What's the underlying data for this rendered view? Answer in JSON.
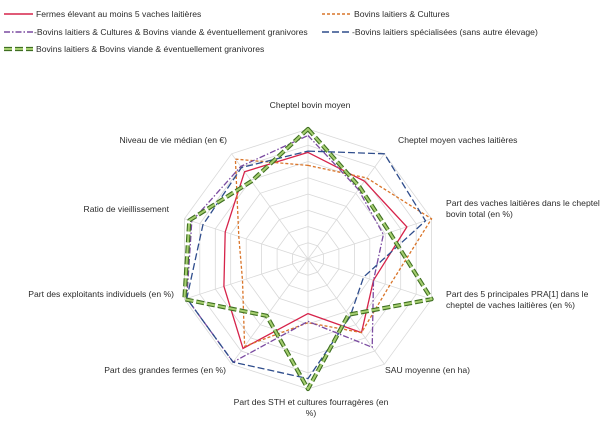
{
  "chart_data": {
    "type": "radar",
    "title": "",
    "grid": true,
    "legend_position": "top",
    "axes": [
      "Cheptel bovin moyen",
      "Cheptel moyen vaches laitières",
      "Part des vaches laitières dans le cheptel bovin total (en %)",
      "Part des 5 principales PRA[1] dans le cheptel de vaches laitières (en %)",
      "SAU moyenne (en ha)",
      "Part des STH et cultures fourragères (en %)",
      "Part des grandes fermes (en %)",
      "Part des exploitants individuels (en %)",
      "Ratio de vieillissement",
      "Niveau de vie médian (en €)"
    ],
    "axis_labels": [
      {
        "lines": [
          "Cheptel bovin moyen"
        ]
      },
      {
        "lines": [
          "Cheptel moyen vaches laitières"
        ]
      },
      {
        "lines": [
          "Part des vaches laitières dans le cheptel",
          "bovin total (en %)"
        ]
      },
      {
        "lines": [
          "Part des 5 principales PRA[1] dans le",
          "cheptel de vaches laitières (en %)"
        ]
      },
      {
        "lines": [
          "SAU moyenne (en ha)"
        ]
      },
      {
        "lines": [
          "Part des STH et cultures fourragères (en",
          "%)"
        ]
      },
      {
        "lines": [
          "Part des grandes fermes (en %)"
        ]
      },
      {
        "lines": [
          "Part des exploitants individuels (en %)"
        ]
      },
      {
        "lines": [
          "Ratio de vieillissement"
        ]
      },
      {
        "lines": [
          "Niveau de vie médian (en €)"
        ]
      }
    ],
    "r_range": [
      0,
      1
    ],
    "grid_levels": 8,
    "series": [
      {
        "name": "Fermes élevant au moins 5 vaches laitières",
        "color": "#d6234a",
        "style": "solid",
        "values": [
          0.82,
          0.74,
          0.8,
          0.53,
          0.7,
          0.42,
          0.85,
          0.68,
          0.67,
          0.83
        ]
      },
      {
        "name": "Bovins laitiers & Cultures",
        "color": "#d9752a",
        "style": "dashed",
        "values": [
          0.72,
          0.77,
          1.0,
          0.66,
          0.7,
          0.49,
          0.83,
          0.53,
          0.56,
          0.95
        ]
      },
      {
        "name": "-Bovins laitiers & Cultures & Bovins viande & éventuellement granivores",
        "color": "#7a4aa0",
        "style": "dashdot",
        "values": [
          0.95,
          0.66,
          0.61,
          0.53,
          0.84,
          0.48,
          0.98,
          0.98,
          0.94,
          0.88
        ]
      },
      {
        "name": "-Bovins laitiers spécialisées (sans autre élevage)",
        "color": "#2f4d8c",
        "style": "longdash",
        "values": [
          0.83,
          1.0,
          0.95,
          0.45,
          0.55,
          0.92,
          0.98,
          0.98,
          0.85,
          0.87
        ]
      },
      {
        "name": "Bovins laitiers & Bovins viande & éventuellement granivores",
        "color": "#6ea03a",
        "style": "green-outlined-dash",
        "values": [
          1.0,
          0.68,
          0.66,
          1.0,
          0.53,
          1.0,
          0.54,
          1.0,
          0.96,
          0.74
        ]
      }
    ]
  }
}
